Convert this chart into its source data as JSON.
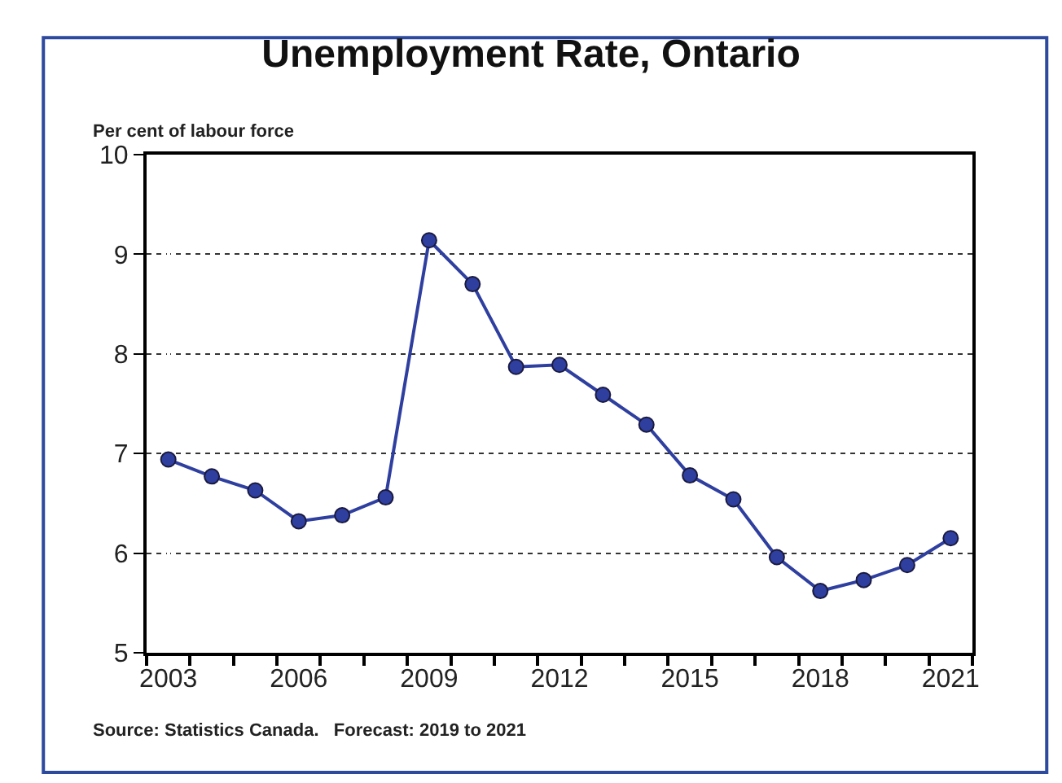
{
  "chart_data": {
    "type": "line",
    "title": "Unemployment Rate, Ontario",
    "ylabel": "Per cent of labour force",
    "categories": [
      "2003",
      null,
      null,
      "2006",
      null,
      null,
      "2009",
      null,
      null,
      "2012",
      null,
      null,
      "2015",
      null,
      null,
      "2018",
      null,
      null,
      "2021"
    ],
    "series": [
      {
        "color": "#2f3f9f",
        "values": [
          6.94,
          6.77,
          6.63,
          6.32,
          6.38,
          6.56,
          9.14,
          8.7,
          7.87,
          7.89,
          7.59,
          7.29,
          6.78,
          6.54,
          5.96,
          5.62,
          5.73,
          5.88,
          6.15
        ]
      }
    ],
    "ylim": [
      5,
      10
    ],
    "yticks": [
      5,
      6,
      7,
      8,
      9,
      10
    ],
    "grid": "y",
    "legend": false,
    "marker": "circle",
    "line_style": "solid",
    "annotations": [
      "Source: Statistics Canada.   Forecast: 2019 to 2021"
    ]
  }
}
